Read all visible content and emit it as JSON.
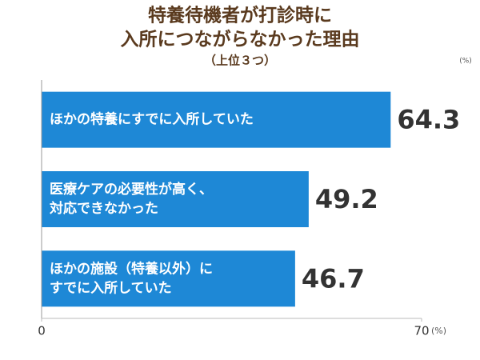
{
  "chart_data": {
    "type": "bar",
    "orientation": "horizontal",
    "title": [
      "特養待機者が打診時に",
      "入所につながらなかった理由"
    ],
    "subtitle": "（上位３つ）",
    "unit": "(%)",
    "categories": [
      [
        "ほかの特養にすでに入所していた"
      ],
      [
        "医療ケアの必要性が高く、",
        "対応できなかった"
      ],
      [
        "ほかの施設（特養以外）に",
        "すでに入所していた"
      ]
    ],
    "values": [
      64.3,
      49.2,
      46.7
    ],
    "color": "#1e88d6",
    "xlim": [
      0,
      70
    ],
    "xticks": [
      0,
      70
    ]
  }
}
